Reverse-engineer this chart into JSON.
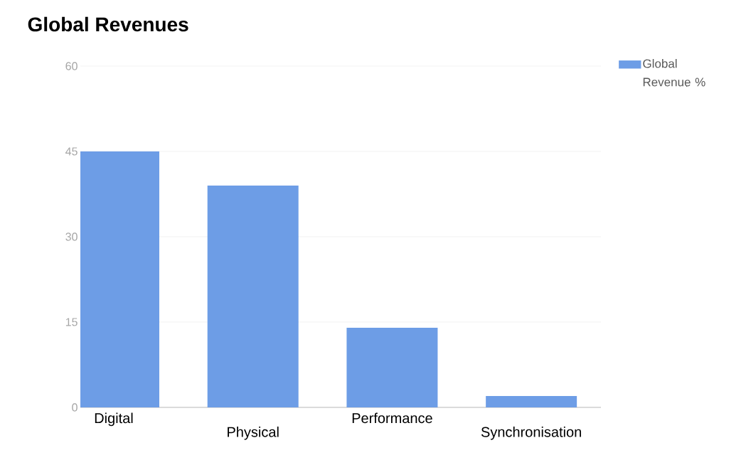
{
  "chart_data": {
    "type": "bar",
    "title": "Global Revenues",
    "categories": [
      "Digital",
      "Physical",
      "Performance",
      "Synchronisation"
    ],
    "series": [
      {
        "name": "Global Revenue %",
        "color": "#6d9de6",
        "values": [
          45,
          39,
          14,
          2
        ]
      }
    ],
    "ylim": [
      0,
      60
    ],
    "yticks": [
      0,
      15,
      30,
      45,
      60
    ],
    "grid": "y",
    "legend": "top right"
  }
}
